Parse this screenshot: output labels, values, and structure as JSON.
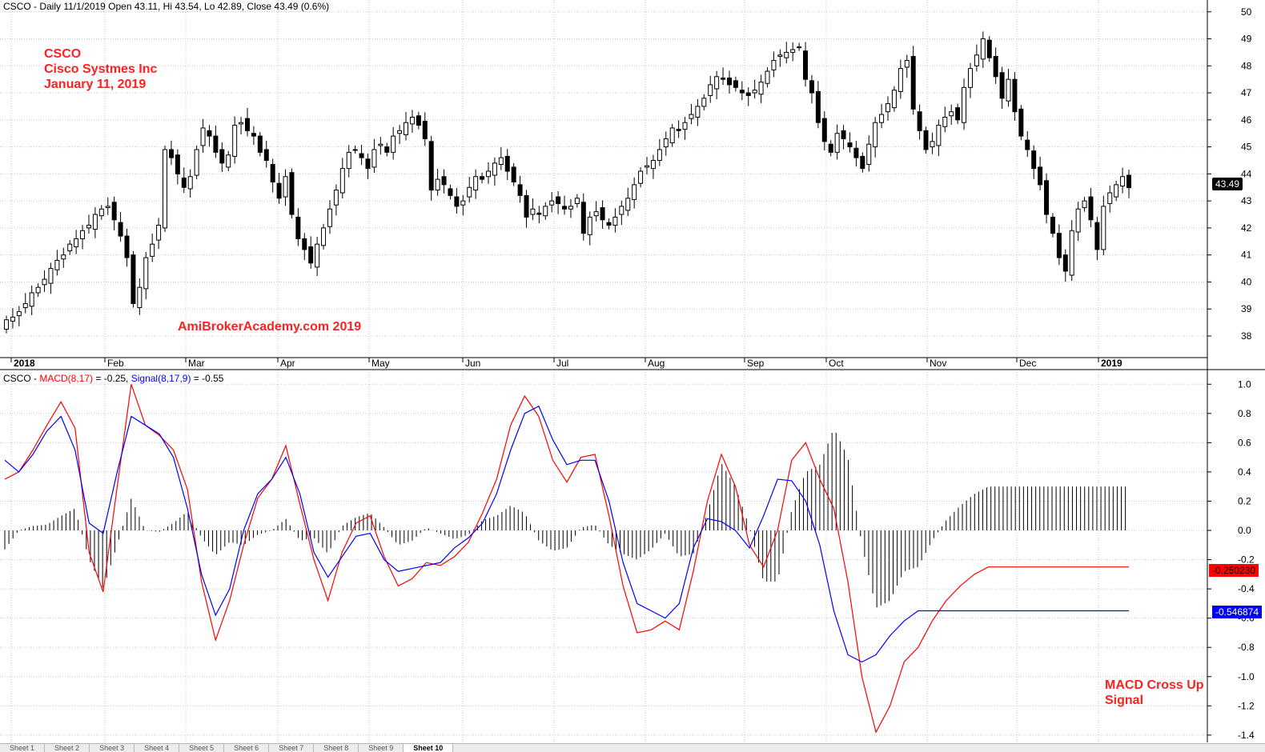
{
  "header": {
    "price_info": "CSCO - Daily 11/1/2019 Open 43.11, Hi 43.54, Lo 42.89, Close 43.49 (0.6%)",
    "macd_prefix": "CSCO - ",
    "macd_label": "MACD(8,17)",
    "macd_value": " = -0.25, ",
    "signal_label": "Signal(8,17,9)",
    "signal_value": " = -0.55"
  },
  "annotations": {
    "ticker": "CSCO",
    "company": "Cisco Systmes Inc",
    "date": "January 11, 2019",
    "watermark": "AmiBrokerAcademy.com  2019",
    "cross_line1": "MACD Cross Up",
    "cross_line2": "Signal"
  },
  "tags": {
    "last_price": "43.49",
    "macd_last": "-0.250230",
    "signal_last": "-0.546874"
  },
  "colors": {
    "macd": "#ff0000",
    "signal": "#0000ff",
    "annotation": "#ff2020",
    "candle_up": "#ffffff",
    "candle_down": "#000000",
    "grid": "#c8c8c8"
  },
  "tabs": [
    "Sheet 1",
    "Sheet 2",
    "Sheet 3",
    "Sheet 4",
    "Sheet 5",
    "Sheet 6",
    "Sheet 7",
    "Sheet 8",
    "Sheet 9",
    "Sheet 10"
  ],
  "active_tab": "Sheet 10",
  "chart_data": [
    {
      "type": "candlestick",
      "title": "CSCO - Daily",
      "x_labels": [
        "2018",
        "Feb",
        "Mar",
        "Apr",
        "May",
        "Jun",
        "Jul",
        "Aug",
        "Sep",
        "Oct",
        "Nov",
        "Dec",
        "2019"
      ],
      "y_ticks": [
        38,
        39,
        40,
        41,
        42,
        43,
        44,
        45,
        46,
        47,
        48,
        49,
        50
      ],
      "ylim": [
        37.2,
        50.2
      ],
      "grid": true,
      "series": [
        {
          "name": "Close",
          "values": [
            38.6,
            38.7,
            38.9,
            39.2,
            39.6,
            39.8,
            40.1,
            40.5,
            40.8,
            41.0,
            41.4,
            41.6,
            41.9,
            42.1,
            42.5,
            42.7,
            42.8,
            42.3,
            41.7,
            40.9,
            39.2,
            39.8,
            40.9,
            41.4,
            42.1,
            44.9,
            44.6,
            44.0,
            43.5,
            43.9,
            44.9,
            45.7,
            45.4,
            44.8,
            44.4,
            44.7,
            45.8,
            45.9,
            45.6,
            45.4,
            44.8,
            44.5,
            43.7,
            43.1,
            43.9,
            42.5,
            41.6,
            41.2,
            40.7,
            41.4,
            42.0,
            42.7,
            43.4,
            44.2,
            44.8,
            44.9,
            44.6,
            44.2,
            44.9,
            45.1,
            44.8,
            45.4,
            45.6,
            45.9,
            46.1,
            45.8,
            45.3,
            43.4,
            43.8,
            43.6,
            43.2,
            42.8,
            43.0,
            43.5,
            43.9,
            43.8,
            44.1,
            44.4,
            44.6,
            44.1,
            43.7,
            43.2,
            42.4,
            42.7,
            42.5,
            42.8,
            43.0,
            42.9,
            42.7,
            42.8,
            43.1,
            41.8,
            42.4,
            42.6,
            42.3,
            42.1,
            42.4,
            42.8,
            43.1,
            43.6,
            44.1,
            44.3,
            44.5,
            44.9,
            45.3,
            45.7,
            45.6,
            45.9,
            46.2,
            46.5,
            46.8,
            47.3,
            47.6,
            47.5,
            47.3,
            47.2,
            47.0,
            46.9,
            47.1,
            47.4,
            47.8,
            48.2,
            48.4,
            48.5,
            48.6,
            48.7,
            47.5,
            47.0,
            45.9,
            45.2,
            44.8,
            45.5,
            45.3,
            45.0,
            44.6,
            44.2,
            45.1,
            45.9,
            46.2,
            46.6,
            47.1,
            47.9,
            48.2,
            46.4,
            45.6,
            44.9,
            45.2,
            45.8,
            46.1,
            46.3,
            46.0,
            47.2,
            47.9,
            48.4,
            49.0,
            48.3,
            47.6,
            46.8,
            47.5,
            46.3,
            45.4,
            44.9,
            44.2,
            43.6,
            42.5,
            41.8,
            40.9,
            40.4,
            41.9,
            42.7,
            43.0,
            42.3,
            41.2,
            42.8,
            43.3,
            43.6,
            43.9,
            43.49
          ]
        }
      ]
    },
    {
      "type": "line",
      "title": "MACD(8,17), Signal(8,17,9)",
      "y_ticks": [
        -1.4,
        -1.2,
        -1.0,
        -0.8,
        -0.6,
        -0.4,
        -0.2,
        0.0,
        0.2,
        0.4,
        0.6,
        0.8,
        1.0
      ],
      "ylim": [
        -1.45,
        1.1
      ],
      "grid": true,
      "series": [
        {
          "name": "MACD(8,17)",
          "x": [
            0,
            5,
            10,
            15,
            20,
            25,
            30,
            35,
            40,
            45,
            50,
            55,
            60,
            65,
            70,
            75,
            80,
            85,
            90,
            95,
            100,
            105,
            110,
            115,
            120,
            125,
            130,
            135,
            140,
            145,
            150,
            155,
            160,
            165,
            170,
            175,
            180,
            185,
            190,
            195,
            200,
            205,
            210,
            215,
            220,
            225,
            230,
            235,
            240,
            245,
            250,
            255,
            260,
            265,
            270,
            275,
            280,
            285,
            290,
            295,
            300,
            305,
            310,
            315,
            320,
            325,
            330,
            335,
            340,
            345,
            350,
            355,
            360,
            365,
            370,
            375,
            380,
            385,
            390,
            395,
            400
          ],
          "values": [
            0.35,
            0.4,
            0.55,
            0.72,
            0.88,
            0.7,
            -0.15,
            -0.42,
            0.3,
            1.0,
            0.72,
            0.65,
            0.55,
            0.28,
            -0.35,
            -0.75,
            -0.48,
            -0.1,
            0.22,
            0.35,
            0.58,
            0.18,
            -0.2,
            -0.48,
            -0.15,
            0.05,
            0.1,
            -0.18,
            -0.38,
            -0.33,
            -0.22,
            -0.24,
            -0.18,
            -0.08,
            0.12,
            0.35,
            0.72,
            0.92,
            0.78,
            0.48,
            0.33,
            0.5,
            0.52,
            0.1,
            -0.38,
            -0.7,
            -0.68,
            -0.62,
            -0.68,
            -0.28,
            0.2,
            0.52,
            0.3,
            -0.1,
            -0.25,
            0.0,
            0.48,
            0.6,
            0.35,
            0.15,
            -0.35,
            -1.0,
            -1.38,
            -1.2,
            -0.9,
            -0.8,
            -0.62,
            -0.48,
            -0.38,
            -0.3,
            -0.25,
            -0.25,
            -0.25,
            -0.25,
            -0.25,
            -0.25,
            -0.25,
            -0.25,
            -0.25,
            -0.25,
            -0.25
          ]
        },
        {
          "name": "Signal(8,17,9)",
          "x": [
            0,
            5,
            10,
            15,
            20,
            25,
            30,
            35,
            40,
            45,
            50,
            55,
            60,
            65,
            70,
            75,
            80,
            85,
            90,
            95,
            100,
            105,
            110,
            115,
            120,
            125,
            130,
            135,
            140,
            145,
            150,
            155,
            160,
            165,
            170,
            175,
            180,
            185,
            190,
            195,
            200,
            205,
            210,
            215,
            220,
            225,
            230,
            235,
            240,
            245,
            250,
            255,
            260,
            265,
            270,
            275,
            280,
            285,
            290,
            295,
            300,
            305,
            310,
            315,
            320,
            325,
            330,
            335,
            340,
            345,
            350,
            355,
            360,
            365,
            370,
            375,
            380,
            385,
            390,
            395,
            400
          ],
          "values": [
            0.48,
            0.4,
            0.52,
            0.68,
            0.78,
            0.55,
            0.05,
            -0.02,
            0.4,
            0.78,
            0.72,
            0.66,
            0.5,
            0.15,
            -0.3,
            -0.58,
            -0.4,
            0.0,
            0.25,
            0.35,
            0.5,
            0.25,
            -0.15,
            -0.32,
            -0.18,
            -0.04,
            -0.02,
            -0.2,
            -0.28,
            -0.26,
            -0.24,
            -0.22,
            -0.12,
            -0.05,
            0.05,
            0.25,
            0.55,
            0.8,
            0.85,
            0.62,
            0.45,
            0.48,
            0.48,
            0.2,
            -0.22,
            -0.5,
            -0.55,
            -0.6,
            -0.5,
            -0.12,
            0.08,
            0.06,
            0.0,
            -0.12,
            0.1,
            0.35,
            0.34,
            0.2,
            -0.1,
            -0.55,
            -0.85,
            -0.9,
            -0.85,
            -0.72,
            -0.62,
            -0.55,
            -0.55,
            -0.55,
            -0.55,
            -0.55,
            -0.55,
            -0.55,
            -0.55,
            -0.55,
            -0.55,
            -0.55,
            -0.55,
            -0.55,
            -0.55,
            -0.55,
            -0.55
          ]
        }
      ]
    }
  ]
}
